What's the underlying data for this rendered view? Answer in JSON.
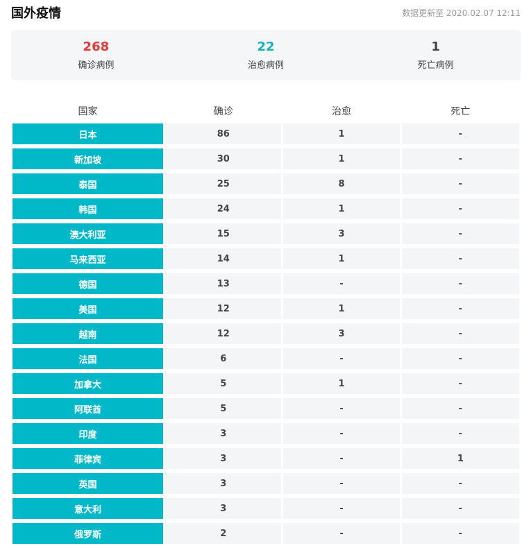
{
  "header": {
    "title": "国外疫情",
    "update_text": "数据更新至 2020.02.07 12:11"
  },
  "summary": [
    {
      "value": "268",
      "label": "确诊病例",
      "color": "#e03a3a"
    },
    {
      "value": "22",
      "label": "治愈病例",
      "color": "#1aaeb8"
    },
    {
      "value": "1",
      "label": "死亡病例",
      "color": "#444444"
    }
  ],
  "table": {
    "columns": [
      "国家",
      "确诊",
      "治愈",
      "死亡"
    ],
    "rows": [
      {
        "country": "日本",
        "confirmed": "86",
        "recovered": "1",
        "deaths": "-"
      },
      {
        "country": "新加坡",
        "confirmed": "30",
        "recovered": "1",
        "deaths": "-"
      },
      {
        "country": "泰国",
        "confirmed": "25",
        "recovered": "8",
        "deaths": "-"
      },
      {
        "country": "韩国",
        "confirmed": "24",
        "recovered": "1",
        "deaths": "-"
      },
      {
        "country": "澳大利亚",
        "confirmed": "15",
        "recovered": "3",
        "deaths": "-"
      },
      {
        "country": "马来西亚",
        "confirmed": "14",
        "recovered": "1",
        "deaths": "-"
      },
      {
        "country": "德国",
        "confirmed": "13",
        "recovered": "-",
        "deaths": "-"
      },
      {
        "country": "美国",
        "confirmed": "12",
        "recovered": "1",
        "deaths": "-"
      },
      {
        "country": "越南",
        "confirmed": "12",
        "recovered": "3",
        "deaths": "-"
      },
      {
        "country": "法国",
        "confirmed": "6",
        "recovered": "-",
        "deaths": "-"
      },
      {
        "country": "加拿大",
        "confirmed": "5",
        "recovered": "1",
        "deaths": "-"
      },
      {
        "country": "阿联酋",
        "confirmed": "5",
        "recovered": "-",
        "deaths": "-"
      },
      {
        "country": "印度",
        "confirmed": "3",
        "recovered": "-",
        "deaths": "-"
      },
      {
        "country": "菲律宾",
        "confirmed": "3",
        "recovered": "-",
        "deaths": "1"
      },
      {
        "country": "英国",
        "confirmed": "3",
        "recovered": "-",
        "deaths": "-"
      },
      {
        "country": "意大利",
        "confirmed": "3",
        "recovered": "-",
        "deaths": "-"
      },
      {
        "country": "俄罗斯",
        "confirmed": "2",
        "recovered": "-",
        "deaths": "-"
      }
    ]
  }
}
